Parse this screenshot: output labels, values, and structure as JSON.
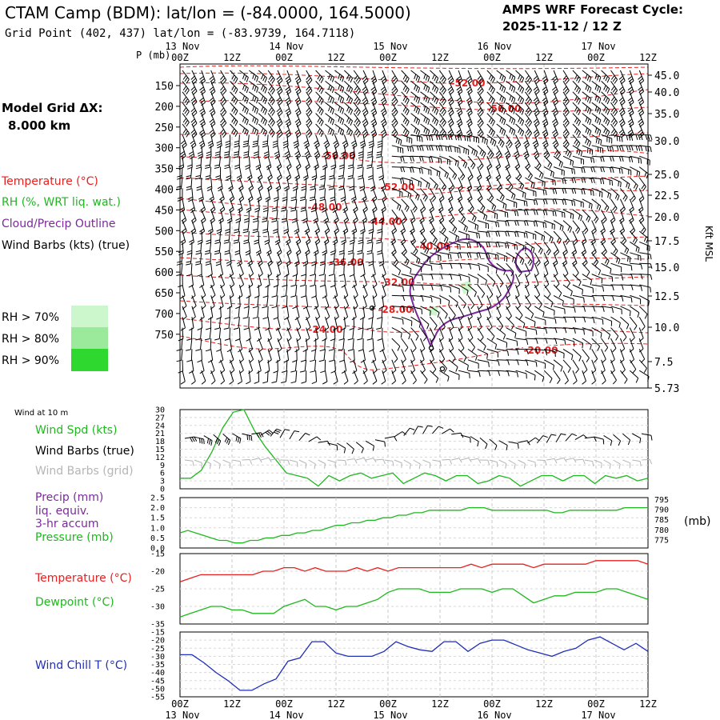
{
  "header": {
    "title": "CTAM Camp (BDM):  lat/lon = (-84.0000, 164.5000)",
    "grid_point": "Grid Point (402, 437) lat/lon = (-83.9739, 164.7118)",
    "cycle_label": "AMPS WRF Forecast Cycle:",
    "cycle_value": "2025-11-12 / 12  Z"
  },
  "sidebar": {
    "model_grid_label": "Model Grid ΔX:",
    "model_grid_value": "8.000 km",
    "legend": [
      {
        "label": "Temperature (°C)",
        "color": "#e8201f"
      },
      {
        "label": "RH (%, WRT liq. wat.)",
        "color": "#1fb81f"
      },
      {
        "label": "Cloud/Precip Outline",
        "color": "#7a2a9a"
      },
      {
        "label": "Wind Barbs (kts) (true)",
        "color": "#000000"
      }
    ],
    "rh_scale": [
      {
        "label": "RH > 70%",
        "color": "#ccf7cc"
      },
      {
        "label": "RH > 80%",
        "color": "#9be99b"
      },
      {
        "label": "RH > 90%",
        "color": "#2ed82e"
      }
    ]
  },
  "time_axis": {
    "ticks": [
      "00Z",
      "12Z",
      "00Z",
      "12Z",
      "00Z",
      "12Z",
      "00Z",
      "12Z",
      "00Z",
      "12Z"
    ],
    "days": [
      "13 Nov",
      "14 Nov",
      "15 Nov",
      "16 Nov",
      "17 Nov"
    ]
  },
  "chart_data": [
    {
      "type": "heatmap",
      "name": "time-height cross section",
      "ylabel": "P (mb)",
      "ylabel_right": "Kft MSL",
      "pressure_ticks": [
        150,
        200,
        250,
        300,
        350,
        400,
        450,
        500,
        550,
        600,
        650,
        700,
        750
      ],
      "height_ticks": [
        "45.0",
        "40.0",
        "35.0",
        "30.0",
        "25.0",
        "22.5",
        "20.0",
        "17.5",
        "15.0",
        "12.5",
        "10.0",
        "7.5",
        "5.73"
      ],
      "temperature_labels": [
        "-52.00",
        "-56.00",
        "-56.00",
        "-52.00",
        "-48.00",
        "-44.00",
        "-40.00",
        "-36.00",
        "-32.00",
        "-28.00",
        "-24.00",
        "-20.00"
      ]
    },
    {
      "type": "line",
      "name": "surface wind",
      "title": "Wind at 10 m",
      "series_labels": [
        "Wind Spd (kts)",
        "Wind Barbs (true)",
        "Wind Barbs (grid)"
      ],
      "yticks": [
        "30",
        "27",
        "24",
        "21",
        "18",
        "15",
        "12",
        "9",
        "6",
        "3",
        "0"
      ],
      "ylim": [
        0,
        30
      ],
      "series": [
        {
          "name": "Wind Spd (kts)",
          "color": "#1fb81f",
          "values": [
            4,
            4,
            7,
            14,
            23,
            29,
            30,
            22,
            16,
            11,
            6,
            5,
            4,
            1,
            5,
            3,
            5,
            6,
            4,
            5,
            6,
            2,
            4,
            6,
            5,
            3,
            5,
            5,
            2,
            3,
            5,
            4,
            1,
            3,
            5,
            5,
            3,
            5,
            5,
            2,
            5,
            4,
            5,
            3,
            4
          ]
        }
      ]
    },
    {
      "type": "line",
      "name": "precip and pressure",
      "series_labels": [
        "Precip (mm)",
        "liq. equiv.",
        "3-hr accum",
        "Pressure (mb)"
      ],
      "yticks": [
        "2.5",
        "2.0",
        "1.5",
        "1.0",
        "0.5",
        "0.0"
      ],
      "yticks_right": [
        "795",
        "790",
        "785",
        "780",
        "775"
      ],
      "ylabel_right": "(mb)",
      "ylim": [
        0,
        2.5
      ],
      "ylim_right": [
        775,
        795
      ],
      "series": [
        {
          "name": "Pressure (mb)",
          "color": "#1fb81f",
          "values": [
            781,
            782,
            781,
            780,
            779,
            778,
            778,
            777,
            777,
            778,
            778,
            779,
            779,
            780,
            780,
            781,
            781,
            782,
            782,
            783,
            784,
            784,
            785,
            785,
            786,
            786,
            787,
            787,
            788,
            788,
            789,
            789,
            790,
            790,
            790,
            790,
            790,
            791,
            791,
            791,
            790,
            790,
            790,
            790,
            790,
            790,
            790,
            790,
            789,
            789,
            790,
            790,
            790,
            790,
            790,
            790,
            790,
            791,
            791,
            791,
            791
          ]
        }
      ]
    },
    {
      "type": "line",
      "name": "temperature and dewpoint",
      "series_labels": [
        "Temperature (°C)",
        "Dewpoint (°C)"
      ],
      "yticks": [
        "-15",
        "-20",
        "-25",
        "-30",
        "-35"
      ],
      "ylim": [
        -35,
        -15
      ],
      "series": [
        {
          "name": "Temperature (°C)",
          "color": "#e8201f",
          "values": [
            -23,
            -22,
            -21,
            -21,
            -21,
            -21,
            -21,
            -21,
            -20,
            -20,
            -19,
            -19,
            -20,
            -19,
            -20,
            -20,
            -20,
            -19,
            -20,
            -19,
            -20,
            -19,
            -19,
            -19,
            -19,
            -19,
            -19,
            -19,
            -18,
            -19,
            -18,
            -18,
            -18,
            -18,
            -19,
            -18,
            -18,
            -18,
            -18,
            -18,
            -17,
            -17,
            -17,
            -17,
            -17,
            -18
          ]
        },
        {
          "name": "Dewpoint (°C)",
          "color": "#1fb81f",
          "values": [
            -33,
            -32,
            -31,
            -30,
            -30,
            -31,
            -31,
            -32,
            -32,
            -32,
            -30,
            -29,
            -28,
            -30,
            -30,
            -31,
            -30,
            -30,
            -29,
            -28,
            -26,
            -25,
            -25,
            -25,
            -26,
            -26,
            -26,
            -25,
            -25,
            -25,
            -26,
            -25,
            -25,
            -27,
            -29,
            -28,
            -27,
            -27,
            -26,
            -26,
            -26,
            -25,
            -25,
            -26,
            -27,
            -28
          ]
        }
      ]
    },
    {
      "type": "line",
      "name": "wind chill",
      "series_labels": [
        "Wind Chill T (°C)"
      ],
      "yticks": [
        "-15",
        "-20",
        "-25",
        "-30",
        "-35",
        "-40",
        "-45",
        "-50",
        "-55"
      ],
      "ylim": [
        -55,
        -15
      ],
      "series": [
        {
          "name": "Wind Chill T (°C)",
          "color": "#1f2fb8",
          "values": [
            -29,
            -29,
            -34,
            -40,
            -45,
            -51,
            -51,
            -47,
            -44,
            -33,
            -31,
            -21,
            -21,
            -28,
            -30,
            -30,
            -30,
            -27,
            -21,
            -24,
            -26,
            -27,
            -21,
            -21,
            -27,
            -22,
            -20,
            -20,
            -23,
            -26,
            -28,
            -30,
            -27,
            -25,
            -20,
            -18,
            -22,
            -26,
            -22,
            -27
          ]
        }
      ]
    }
  ]
}
